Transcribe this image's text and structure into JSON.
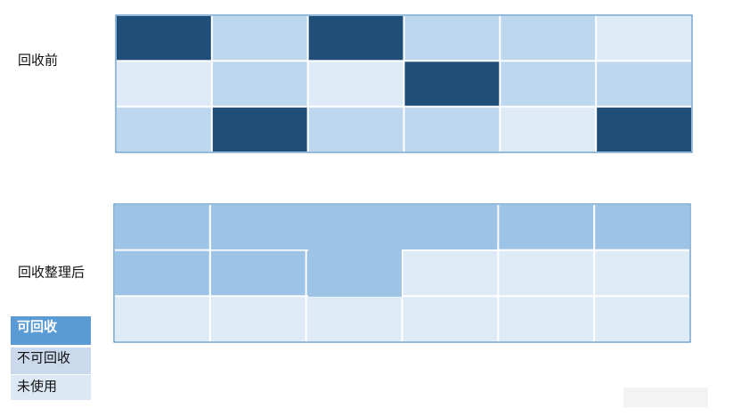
{
  "labels": {
    "before": "回收前",
    "after": "回收整理后"
  },
  "legend": [
    "可回收",
    "不可回收",
    "未使用"
  ]
}
